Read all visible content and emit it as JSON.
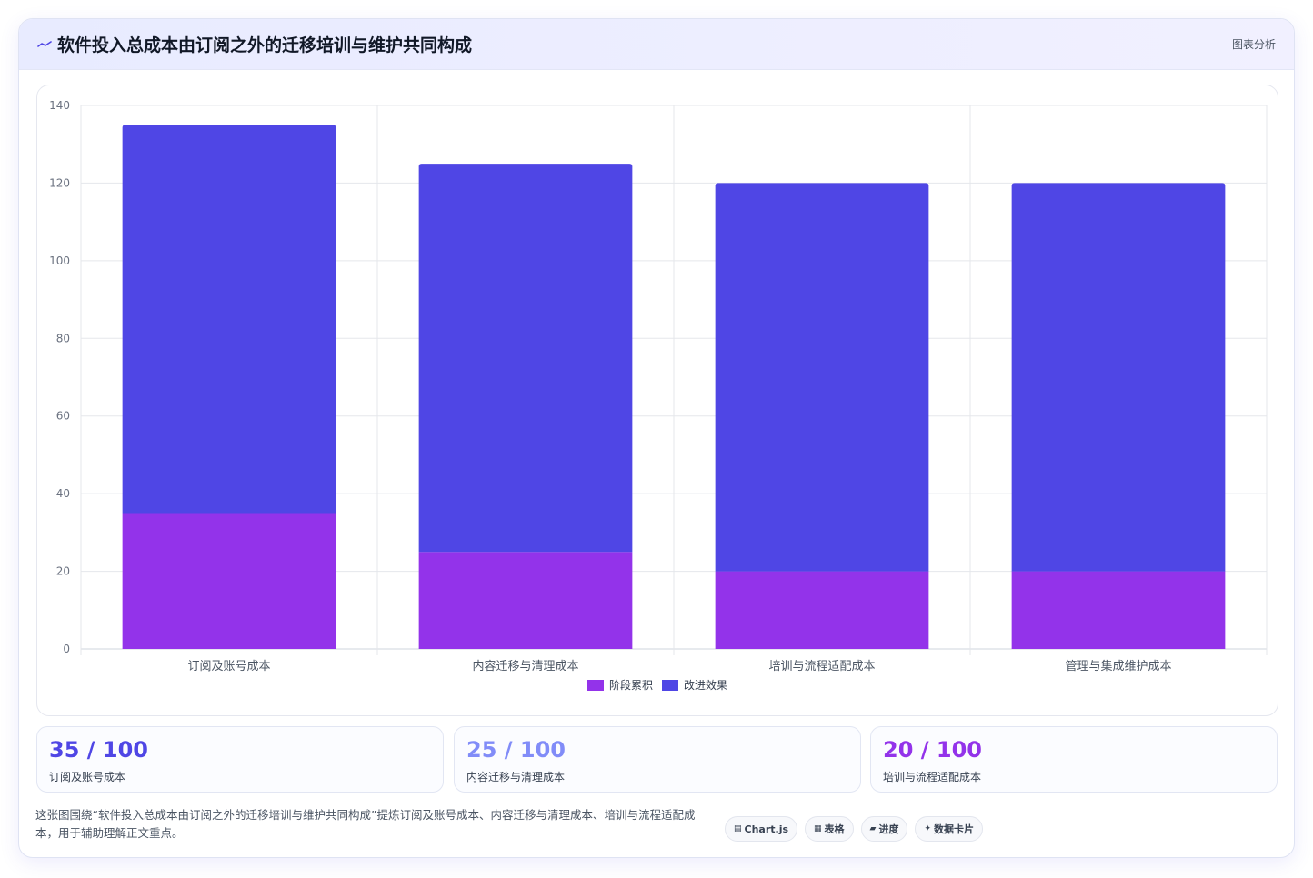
{
  "header": {
    "title": "软件投入总成本由订阅之外的迁移培训与维护共同构成",
    "tag": "图表分析",
    "icon": "chart-line-icon"
  },
  "chart_data": {
    "type": "bar",
    "stacked": true,
    "categories": [
      "订阅及账号成本",
      "内容迁移与清理成本",
      "培训与流程适配成本",
      "管理与集成维护成本"
    ],
    "series": [
      {
        "name": "阶段累积",
        "color": "#9333ea",
        "values": [
          35,
          25,
          20,
          20
        ]
      },
      {
        "name": "改进效果",
        "color": "#4f46e5",
        "values": [
          100,
          100,
          100,
          100
        ]
      }
    ],
    "ylim": [
      0,
      140
    ],
    "yticks": [
      0,
      20,
      40,
      60,
      80,
      100,
      120,
      140
    ],
    "grid": true,
    "legend": "bottom"
  },
  "kpis": [
    {
      "value": "35 / 100",
      "label": "订阅及账号成本",
      "color": "#4f46e5"
    },
    {
      "value": "25 / 100",
      "label": "内容迁移与清理成本",
      "color": "#818cf8"
    },
    {
      "value": "20 / 100",
      "label": "培训与流程适配成本",
      "color": "#9333ea"
    }
  ],
  "footer": {
    "text": "这张图围绕“软件投入总成本由订阅之外的迁移培训与维护共同构成”提炼订阅及账号成本、内容迁移与清理成本、培训与流程适配成本，用于辅助理解正文重点。",
    "chips": [
      {
        "icon": "▤",
        "label": "Chart.js"
      },
      {
        "icon": "▦",
        "label": "表格"
      },
      {
        "icon": "▰",
        "label": "进度"
      },
      {
        "icon": "✦",
        "label": "数据卡片"
      }
    ]
  }
}
